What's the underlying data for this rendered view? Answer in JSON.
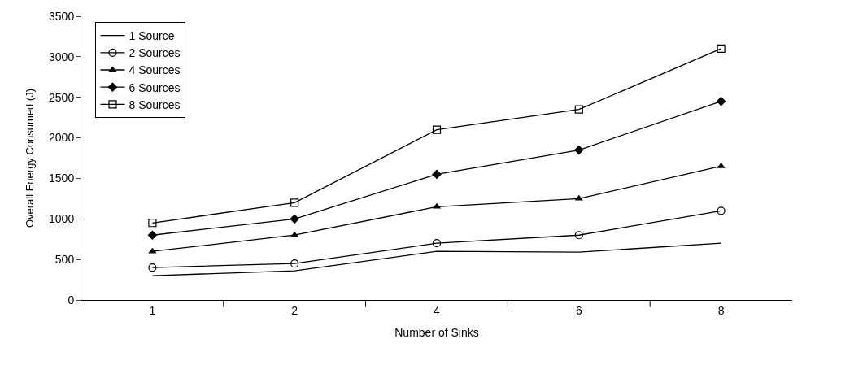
{
  "chart_data": {
    "type": "line",
    "xlabel": "Number of Sinks",
    "ylabel": "Overall Energy Consumed (J)",
    "categories": [
      "1",
      "2",
      "4",
      "6",
      "8"
    ],
    "series": [
      {
        "name": "1 Source",
        "color": "#000000",
        "marker": "none",
        "values": [
          300,
          360,
          600,
          590,
          700
        ]
      },
      {
        "name": "2 Sources",
        "color": "#000000",
        "marker": "circle",
        "values": [
          400,
          450,
          700,
          800,
          1100
        ]
      },
      {
        "name": "4 Sources",
        "color": "#000000",
        "marker": "triangle",
        "values": [
          600,
          800,
          1150,
          1250,
          1650
        ]
      },
      {
        "name": "6 Sources",
        "color": "#000000",
        "marker": "diamond",
        "values": [
          800,
          1000,
          1550,
          1850,
          2450
        ]
      },
      {
        "name": "8 Sources",
        "color": "#000000",
        "marker": "square",
        "values": [
          950,
          1200,
          2100,
          2350,
          3100
        ]
      }
    ],
    "ylim": [
      0,
      3500
    ],
    "yticks": [
      0,
      500,
      1000,
      1500,
      2000,
      2500,
      3000,
      3500
    ],
    "legend": "top left",
    "line_style": "solid"
  }
}
